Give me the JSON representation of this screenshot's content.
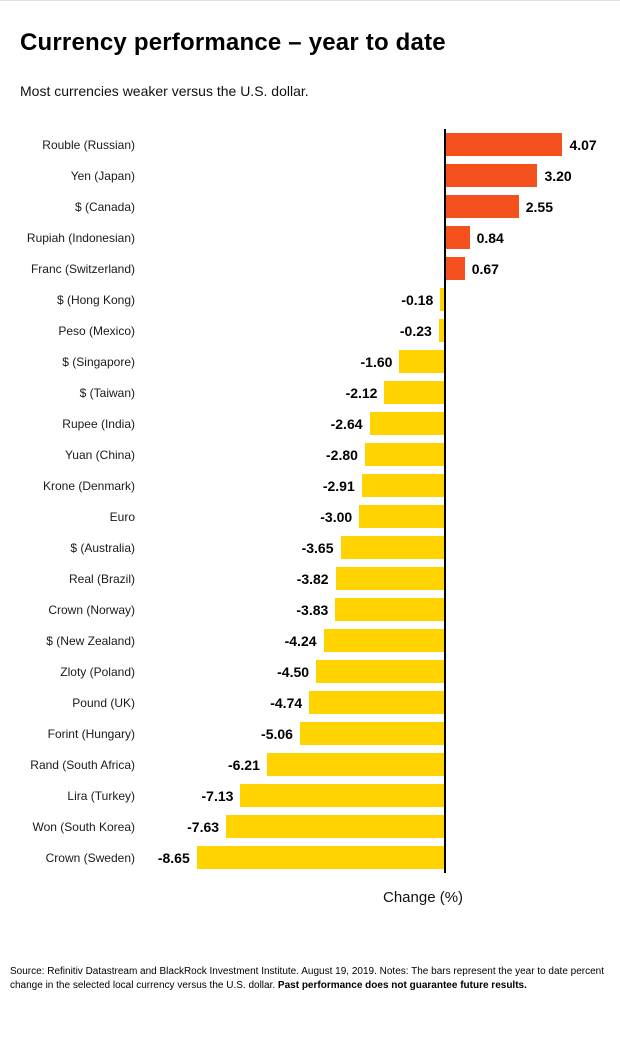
{
  "header": {
    "title": "Currency performance – year to date",
    "subtitle": "Most currencies weaker versus the U.S. dollar."
  },
  "chart_data": {
    "type": "bar",
    "orientation": "horizontal",
    "title": "Currency performance – year to date",
    "subtitle": "Most currencies weaker versus the U.S. dollar.",
    "xlabel": "Change (%)",
    "xlim": [
      -10.45,
      5.55
    ],
    "grid": false,
    "legend": false,
    "positive_color": "#F4511E",
    "negative_color": "#FFD200",
    "axis_line_color": "#000000",
    "categories": [
      "Rouble (Russian)",
      "Yen (Japan)",
      "$ (Canada)",
      "Rupiah (Indonesian)",
      "Franc (Switzerland)",
      "$ (Hong Kong)",
      "Peso (Mexico)",
      "$ (Singapore)",
      "$ (Taiwan)",
      "Rupee (India)",
      "Yuan (China)",
      "Krone (Denmark)",
      "Euro",
      "$ (Australia)",
      "Real (Brazil)",
      "Crown (Norway)",
      "$ (New Zealand)",
      "Zloty (Poland)",
      "Pound (UK)",
      "Forint (Hungary)",
      "Rand (South Africa)",
      "Lira (Turkey)",
      "Won (South Korea)",
      "Crown (Sweden)"
    ],
    "values": [
      4.07,
      3.2,
      2.55,
      0.84,
      0.67,
      -0.18,
      -0.23,
      -1.6,
      -2.12,
      -2.64,
      -2.8,
      -2.91,
      -3.0,
      -3.65,
      -3.82,
      -3.83,
      -4.24,
      -4.5,
      -4.74,
      -5.06,
      -6.21,
      -7.13,
      -7.63,
      -8.65
    ]
  },
  "footer": {
    "source": "Source: Refinitiv Datastream and BlackRock Investment Institute. August 19, 2019. Notes: The bars represent the year to date percent change in the selected local currency versus the U.S. dollar. ",
    "disclaimer": "Past performance does not guarantee future results."
  }
}
